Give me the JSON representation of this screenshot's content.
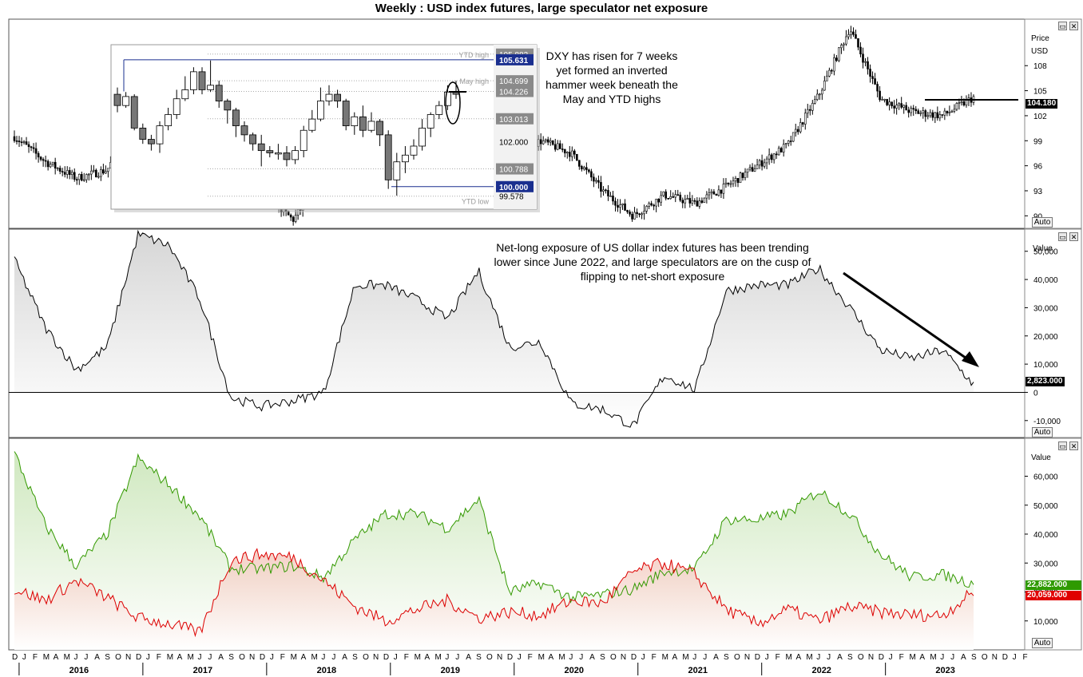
{
  "title": "Weekly : USD index futures, large speculator net exposure",
  "panels": {
    "price": {
      "label_1": "Price",
      "label_2": "USD",
      "auto": "Auto",
      "ticks": [
        "108",
        "105",
        "102",
        "99",
        "96",
        "93",
        "90"
      ],
      "last_value": "104.180",
      "annotation": "DXY has risen for 7 weeks yet formed an inverted hammer week beneath the May and YTD highs"
    },
    "net": {
      "label": "Value",
      "auto": "Auto",
      "ticks": [
        "50,000",
        "40,000",
        "30,000",
        "20,000",
        "10,000",
        "0",
        "-10,000"
      ],
      "last_value": "2,823.000",
      "annotation": "Net-long exposure of US dollar index futures has been trending lower since June 2022, and large speculators are on the cusp of flipping to net-short exposure"
    },
    "gross": {
      "label": "Value",
      "auto": "Auto",
      "ticks": [
        "60,000",
        "50,000",
        "40,000",
        "30,000",
        "20,000",
        "10,000"
      ],
      "long_last": "22,882.000",
      "short_last": "20,059.000"
    }
  },
  "inset": {
    "labels": {
      "ytd_high": "YTD high",
      "may_high": "May high",
      "ytd_low": "YTD low"
    },
    "levels": [
      "105.883",
      "105.631",
      "104.699",
      "104.226",
      "103.013",
      "102.000",
      "100.788",
      "100.000",
      "99.578"
    ]
  },
  "x_axis": {
    "months": [
      "D",
      "J",
      "F",
      "M",
      "A",
      "M",
      "J",
      "J",
      "A",
      "S",
      "O",
      "N",
      "D",
      "J",
      "F",
      "M",
      "A",
      "M",
      "J",
      "J",
      "A",
      "S",
      "O",
      "N",
      "D",
      "J",
      "F",
      "M",
      "A",
      "M",
      "J",
      "J",
      "A",
      "S",
      "O",
      "N",
      "D",
      "J",
      "F",
      "M",
      "A",
      "M",
      "J",
      "J",
      "A",
      "S",
      "O",
      "N",
      "D",
      "J",
      "F",
      "M",
      "A",
      "M",
      "J",
      "J",
      "A",
      "S",
      "O",
      "N",
      "D",
      "J",
      "F",
      "M",
      "A",
      "M",
      "J",
      "J",
      "A",
      "S",
      "O",
      "N",
      "D",
      "J",
      "F",
      "M",
      "A",
      "M",
      "J",
      "J",
      "A",
      "S",
      "O",
      "N",
      "D",
      "J",
      "F",
      "M",
      "A",
      "M",
      "J",
      "J",
      "A",
      "S",
      "O",
      "N",
      "D",
      "J",
      "F"
    ],
    "years": [
      "2016",
      "2017",
      "2018",
      "2019",
      "2020",
      "2021",
      "2022",
      "2023"
    ]
  },
  "colors": {
    "long": "#339900",
    "short": "#dd0000",
    "price": "#000000",
    "tag_blue": "#1a2f8f",
    "tag_gray": "#8a8a8a"
  },
  "chart_data": [
    {
      "type": "line",
      "name": "price",
      "x": [
        "2015-12",
        "2016-03",
        "2016-06",
        "2016-09",
        "2016-12",
        "2017-03",
        "2017-06",
        "2017-09",
        "2017-12",
        "2018-03",
        "2018-06",
        "2018-09",
        "2018-12",
        "2019-03",
        "2019-06",
        "2019-09",
        "2019-12",
        "2020-03",
        "2020-06",
        "2020-09",
        "2020-12",
        "2021-03",
        "2021-06",
        "2021-09",
        "2021-12",
        "2022-03",
        "2022-06",
        "2022-09",
        "2022-12",
        "2023-03",
        "2023-06",
        "2023-09"
      ],
      "series": [
        {
          "values": [
            99.5,
            96.5,
            94.5,
            95.5,
            102.5,
            100.5,
            96.5,
            92.5,
            93.0,
            89.5,
            94.5,
            94.5,
            96.5,
            96.5,
            97.0,
            98.5,
            97.0,
            99.0,
            97.5,
            93.0,
            90.0,
            92.5,
            91.5,
            93.5,
            96.0,
            98.5,
            104.5,
            112.5,
            104.0,
            102.5,
            102.0,
            104.2
          ]
        }
      ],
      "ylim": [
        88.5,
        113
      ]
    },
    {
      "type": "area",
      "name": "net",
      "x": [
        "2015-12",
        "2016-03",
        "2016-06",
        "2016-09",
        "2016-12",
        "2017-03",
        "2017-06",
        "2017-09",
        "2017-12",
        "2018-03",
        "2018-06",
        "2018-09",
        "2018-12",
        "2019-03",
        "2019-06",
        "2019-09",
        "2019-12",
        "2020-03",
        "2020-06",
        "2020-09",
        "2020-12",
        "2021-03",
        "2021-06",
        "2021-09",
        "2021-12",
        "2022-03",
        "2022-06",
        "2022-09",
        "2022-12",
        "2023-03",
        "2023-06",
        "2023-09"
      ],
      "series": [
        {
          "values": [
            47000,
            23000,
            8000,
            16000,
            56000,
            52000,
            33000,
            -2000,
            -5000,
            -3000,
            0,
            38000,
            38000,
            33000,
            26000,
            43000,
            16000,
            18000,
            -4000,
            -6000,
            -12000,
            6000,
            1000,
            36000,
            38000,
            38000,
            44000,
            30000,
            15000,
            12000,
            15000,
            2823
          ]
        }
      ],
      "ylim": [
        -16000,
        57000
      ]
    },
    {
      "type": "line",
      "name": "gross",
      "x": [
        "2015-12",
        "2016-03",
        "2016-06",
        "2016-09",
        "2016-12",
        "2017-03",
        "2017-06",
        "2017-09",
        "2017-12",
        "2018-03",
        "2018-06",
        "2018-09",
        "2018-12",
        "2019-03",
        "2019-06",
        "2019-09",
        "2019-12",
        "2020-03",
        "2020-06",
        "2020-09",
        "2020-12",
        "2021-03",
        "2021-06",
        "2021-09",
        "2021-12",
        "2022-03",
        "2022-06",
        "2022-09",
        "2022-12",
        "2023-03",
        "2023-06",
        "2023-09"
      ],
      "series": [
        {
          "values": [
            68000,
            43000,
            29000,
            40000,
            66000,
            57000,
            46000,
            28000,
            28000,
            29000,
            25000,
            38000,
            47000,
            47000,
            42000,
            52000,
            20000,
            23000,
            18000,
            19000,
            21000,
            27000,
            28000,
            45000,
            45000,
            47000,
            55000,
            47000,
            33000,
            25000,
            26000,
            22882
          ]
        },
        {
          "values": [
            21000,
            17000,
            24000,
            18000,
            11000,
            9000,
            6000,
            31000,
            33000,
            32000,
            24000,
            15000,
            10000,
            14000,
            17000,
            11000,
            13000,
            12000,
            17000,
            16000,
            27000,
            30000,
            26000,
            14000,
            9000,
            14000,
            10000,
            15000,
            13000,
            12000,
            12000,
            20059
          ]
        }
      ],
      "ylim": [
        0,
        72000
      ]
    }
  ]
}
